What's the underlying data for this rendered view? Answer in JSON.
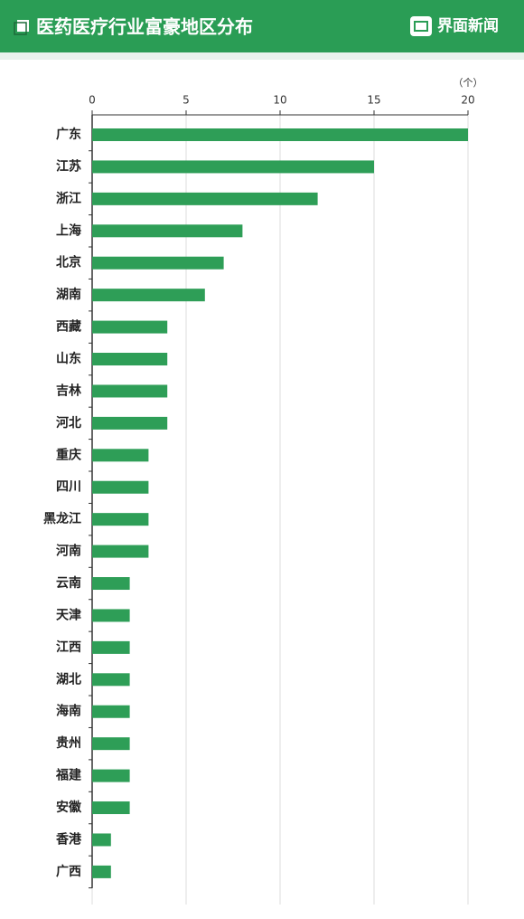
{
  "chart_data": {
    "type": "bar",
    "orientation": "horizontal",
    "title": "医药医疗行业富豪地区分布",
    "brand": "界面新闻",
    "unit": "（个）",
    "categories": [
      "广东",
      "江苏",
      "浙江",
      "上海",
      "北京",
      "湖南",
      "西藏",
      "山东",
      "吉林",
      "河北",
      "重庆",
      "四川",
      "黑龙江",
      "河南",
      "云南",
      "天津",
      "江西",
      "湖北",
      "海南",
      "贵州",
      "福建",
      "安徽",
      "香港",
      "广西"
    ],
    "values": [
      20,
      15,
      12,
      8,
      7,
      6,
      4,
      4,
      4,
      4,
      3,
      3,
      3,
      3,
      2,
      2,
      2,
      2,
      2,
      2,
      2,
      2,
      1,
      1
    ],
    "color": "#2e9e57",
    "xlim": [
      0,
      20
    ],
    "xticks": [
      0,
      5,
      10,
      15,
      20
    ],
    "grid": true
  }
}
